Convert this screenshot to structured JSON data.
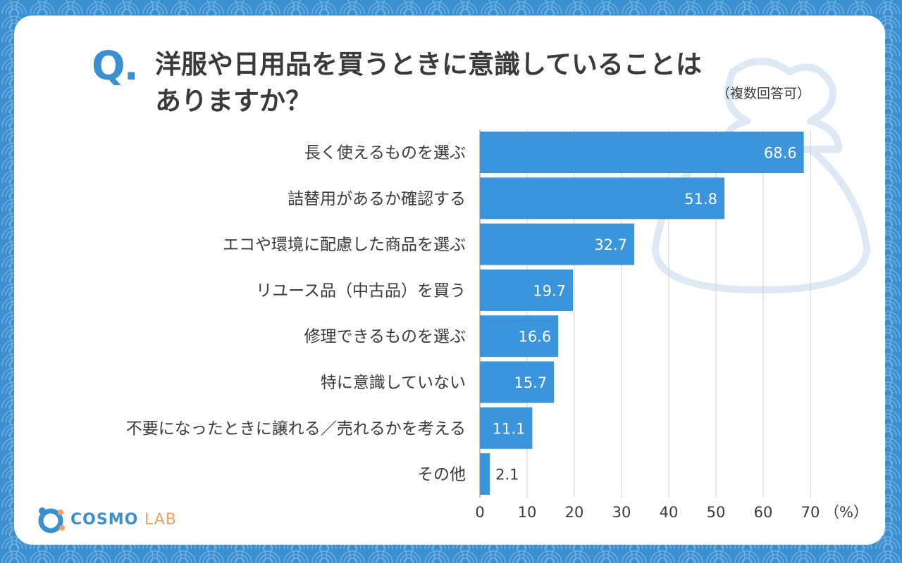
{
  "question": {
    "mark": "Q.",
    "line1": "洋服や日用品を買うときに意識していることは",
    "line2": "ありますか？",
    "note": "（複数回答可）"
  },
  "logo": {
    "name": "COSMO",
    "suffix": "LAB"
  },
  "colors": {
    "bar": "#3a95dc",
    "background": "#3a8fd0",
    "accent": "#3a8fd0"
  },
  "chart_data": {
    "type": "bar",
    "orientation": "horizontal",
    "title": "洋服や日用品を買うときに意識していることはありますか？",
    "unit_label": "（%）",
    "categories": [
      "長く使えるものを選ぶ",
      "詰替用があるか確認する",
      "エコや環境に配慮した商品を選ぶ",
      "リユース品（中古品）を買う",
      "修理できるものを選ぶ",
      "特に意識していない",
      "不要になったときに譲れる／売れるかを考える",
      "その他"
    ],
    "values": [
      68.6,
      51.8,
      32.7,
      19.7,
      16.6,
      15.7,
      11.1,
      2.1
    ],
    "value_labels": [
      "68.6",
      "51.8",
      "32.7",
      "19.7",
      "16.6",
      "15.7",
      "11.1",
      "2.1"
    ],
    "xlim": [
      0,
      70
    ],
    "xticks": [
      "0",
      "10",
      "20",
      "30",
      "40",
      "50",
      "60",
      "70"
    ],
    "grid": true
  }
}
